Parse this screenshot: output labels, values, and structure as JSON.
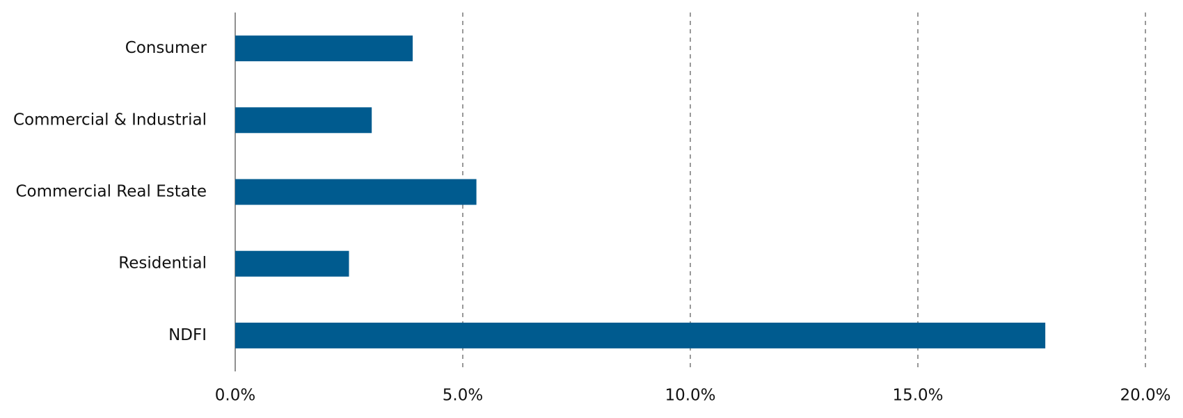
{
  "chart_data": {
    "type": "bar",
    "orientation": "horizontal",
    "categories": [
      "Consumer",
      "Commercial & Industrial",
      "Commercial Real Estate",
      "Residential",
      "NDFI"
    ],
    "values": [
      3.9,
      3.0,
      5.3,
      2.5,
      17.8
    ],
    "color": "#005b8f",
    "xlim": [
      0,
      20
    ],
    "xticks": [
      {
        "value": 0,
        "label": "0.0%"
      },
      {
        "value": 5,
        "label": "5.0%"
      },
      {
        "value": 10,
        "label": "10.0%"
      },
      {
        "value": 15,
        "label": "15.0%"
      },
      {
        "value": 20,
        "label": "20.0%"
      }
    ],
    "grid": true
  }
}
